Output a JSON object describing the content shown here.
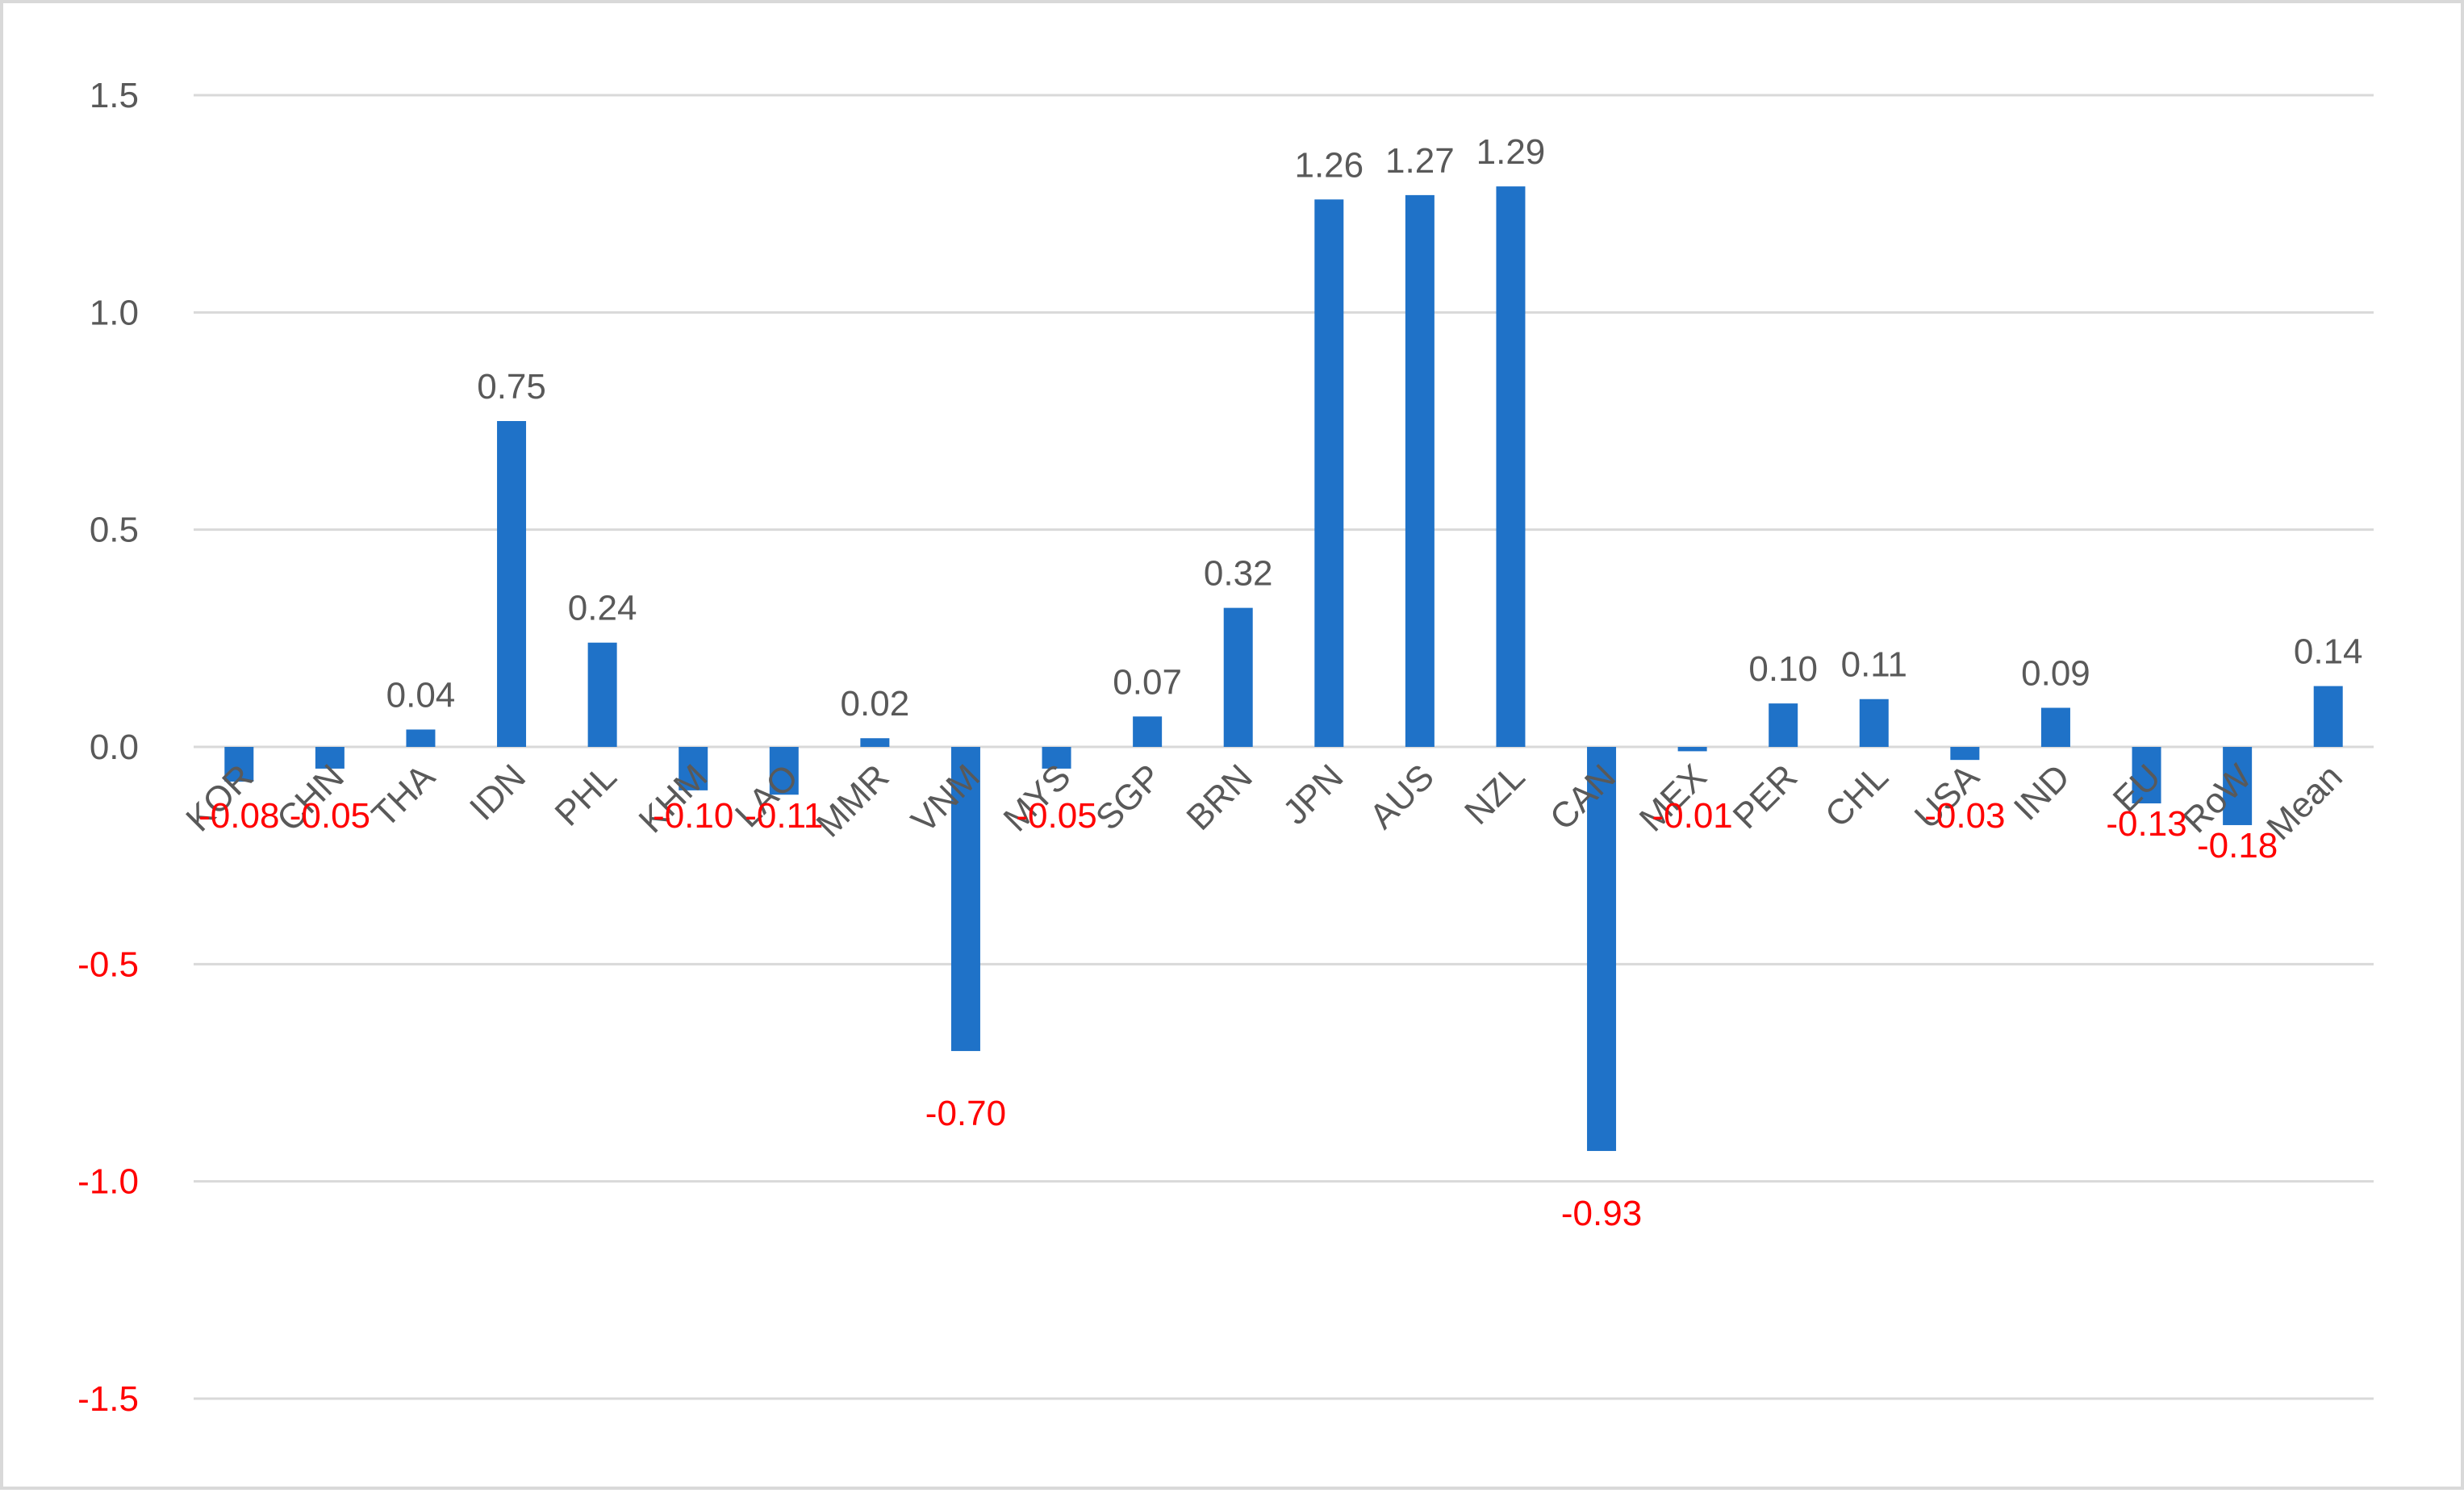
{
  "chart_data": {
    "type": "bar",
    "categories": [
      "KOR",
      "CHN",
      "THA",
      "IDN",
      "PHL",
      "KHM",
      "LAO",
      "MMR",
      "VNM",
      "MYS",
      "SGP",
      "BRN",
      "JPN",
      "AUS",
      "NZL",
      "CAN",
      "MEX",
      "PER",
      "CHL",
      "USA",
      "IND",
      "EU",
      "RoW",
      "Mean"
    ],
    "values": [
      -0.08,
      -0.05,
      0.04,
      0.75,
      0.24,
      -0.1,
      -0.11,
      0.02,
      -0.7,
      -0.05,
      0.07,
      0.32,
      1.26,
      1.27,
      1.29,
      -0.93,
      -0.01,
      0.1,
      0.11,
      -0.03,
      0.09,
      -0.13,
      -0.18,
      0.14
    ],
    "data_labels": [
      "-0.08",
      "-0.05",
      "0.04",
      "0.75",
      "0.24",
      "-0.10",
      "-0.11",
      "0.02",
      "-0.70",
      "-0.05",
      "0.07",
      "0.32",
      "1.26",
      "1.27",
      "1.29",
      "-0.93",
      "-0.01",
      "0.10",
      "0.11",
      "-0.03",
      "0.09",
      "-0.13",
      "-0.18",
      "0.14"
    ],
    "ylim": [
      -1.5,
      1.5
    ],
    "yticks": [
      1.5,
      1.0,
      0.5,
      0.0,
      -0.5,
      -1.0,
      -1.5
    ],
    "ytick_labels": [
      "1.5",
      "1.0",
      "0.5",
      "0.0",
      "-0.5",
      "-1.0",
      "-1.5"
    ],
    "title": "",
    "xlabel": "",
    "ylabel": "",
    "grid": true,
    "legend": "none",
    "colors": {
      "bar": "#1f72c8",
      "positive_text": "#595959",
      "negative_text": "#ff0000",
      "grid": "#d9d9d9"
    }
  }
}
